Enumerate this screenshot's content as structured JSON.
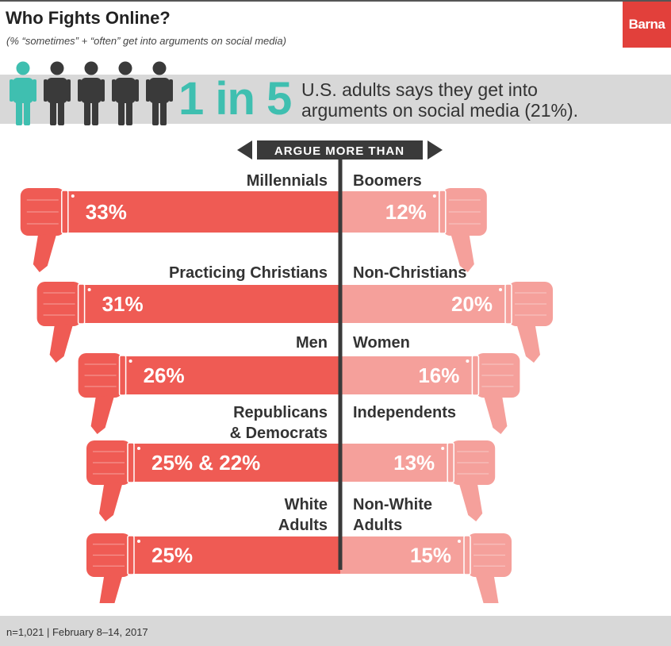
{
  "header": {
    "title": "Who Fights Online?",
    "subtitle": "(% “sometimes” + “often” get into arguments on social media)",
    "logo": "Barna"
  },
  "headline": {
    "stat": "1 in 5",
    "description_line1": "U.S. adults says they get into",
    "description_line2": "arguments on social media (21%).",
    "highlight_count": 1,
    "total_count": 5
  },
  "colors": {
    "accent_teal": "#3fbfb0",
    "bar_left": "#ef5b54",
    "bar_right": "#f5a09b",
    "figure_dark": "#3a3a3a"
  },
  "footer": {
    "note": "n=1,021 | February 8–14, 2017"
  },
  "chart_data": {
    "type": "bar",
    "title": "ARGUE MORE THAN",
    "xlabel": "",
    "ylabel": "",
    "xlim": [
      0,
      35
    ],
    "groups": [
      {
        "left_label": [
          "Millennials"
        ],
        "right_label": [
          "Boomers"
        ],
        "left_value": 33,
        "right_value": 12,
        "left_text": "33%",
        "right_text": "12%"
      },
      {
        "left_label": [
          "Practicing Christians"
        ],
        "right_label": [
          "Non-Christians"
        ],
        "left_value": 31,
        "right_value": 20,
        "left_text": "31%",
        "right_text": "20%"
      },
      {
        "left_label": [
          "Men"
        ],
        "right_label": [
          "Women"
        ],
        "left_value": 26,
        "right_value": 16,
        "left_text": "26%",
        "right_text": "16%"
      },
      {
        "left_label": [
          "Republicans",
          "& Democrats"
        ],
        "right_label": [
          "Independents"
        ],
        "left_value": 25,
        "right_value": 13,
        "left_text": "25% & 22%",
        "right_text": "13%"
      },
      {
        "left_label": [
          "White",
          "Adults"
        ],
        "right_label": [
          "Non-White",
          "Adults"
        ],
        "left_value": 25,
        "right_value": 15,
        "left_text": "25%",
        "right_text": "15%"
      }
    ]
  }
}
